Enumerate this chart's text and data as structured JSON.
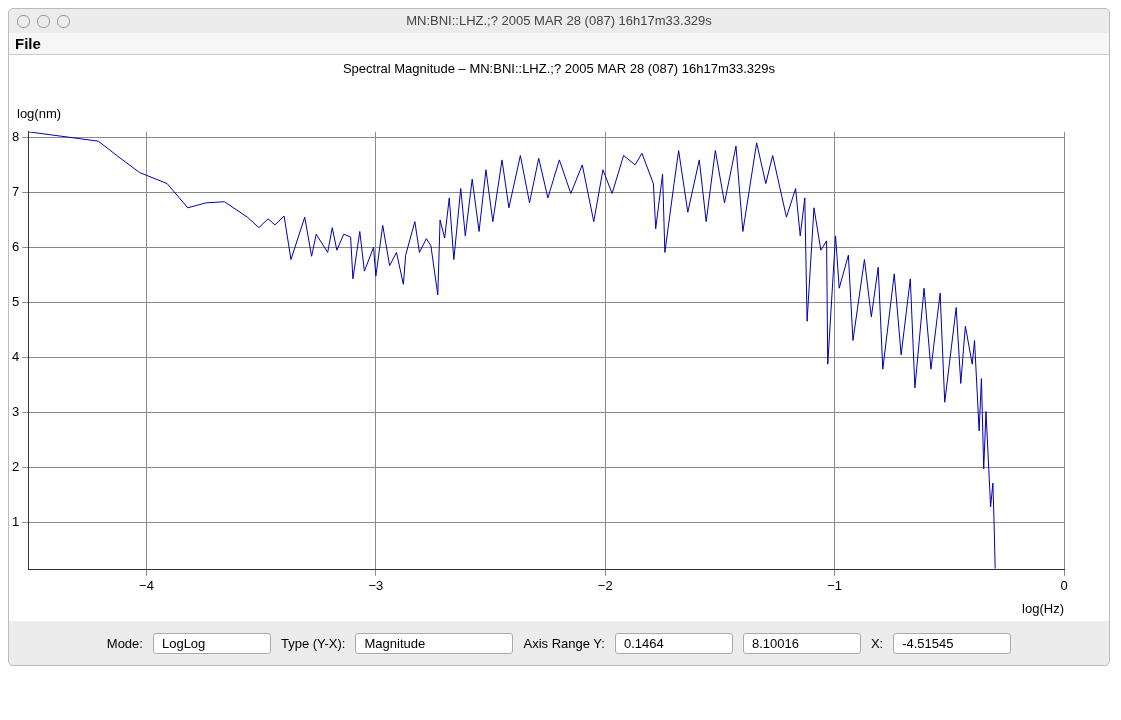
{
  "chart_data": {
    "type": "line",
    "title": "Spectral Magnitude  –  MN:BNI::LHZ.;? 2005 MAR 28 (087)  16h17m33.329s",
    "xlabel": "log(Hz)",
    "ylabel": "log(nm)",
    "annotations": [
      "MN:BNI::LHZ.;? 2005 MAR 28 (087)  16h17m33.329s",
      "File",
      "Mode:",
      "LogLog",
      "Type (Y-X):",
      "Magnitude",
      "Axis Range Y:",
      "0.1464",
      "8.10016",
      "X:",
      "-4.51545"
    ],
    "x": [
      -4.515,
      -4.21,
      -4.12,
      -4.03,
      -3.91,
      -3.82,
      -3.74,
      -3.66,
      -3.56,
      -3.51,
      -3.47,
      -3.44,
      -3.4,
      -3.37,
      -3.31,
      -3.28,
      -3.26,
      -3.21,
      -3.19,
      -3.17,
      -3.14,
      -3.11,
      -3.1,
      -3.07,
      -3.05,
      -3.01,
      -3.0,
      -2.97,
      -2.94,
      -2.91,
      -2.88,
      -2.87,
      -2.83,
      -2.81,
      -2.78,
      -2.76,
      -2.73,
      -2.72,
      -2.7,
      -2.68,
      -2.66,
      -2.63,
      -2.61,
      -2.58,
      -2.55,
      -2.52,
      -2.49,
      -2.45,
      -2.42,
      -2.37,
      -2.33,
      -2.29,
      -2.25,
      -2.2,
      -2.15,
      -2.1,
      -2.05,
      -2.01,
      -1.97,
      -1.92,
      -1.87,
      -1.84,
      -1.79,
      -1.78,
      -1.75,
      -1.74,
      -1.7,
      -1.68,
      -1.64,
      -1.59,
      -1.56,
      -1.52,
      -1.48,
      -1.43,
      -1.4,
      -1.34,
      -1.3,
      -1.27,
      -1.21,
      -1.17,
      -1.15,
      -1.13,
      -1.12,
      -1.09,
      -1.06,
      -1.035,
      -1.03,
      -0.996,
      -0.98,
      -0.94,
      -0.92,
      -0.87,
      -0.84,
      -0.81,
      -0.79,
      -0.74,
      -0.71,
      -0.67,
      -0.65,
      -0.61,
      -0.58,
      -0.54,
      -0.52,
      -0.47,
      -0.45,
      -0.43,
      -0.4,
      -0.39,
      -0.37,
      -0.36,
      -0.35,
      -0.34,
      -0.32,
      -0.31,
      -0.305,
      -0.3
    ],
    "series": [
      {
        "color": "#0000b0",
        "values": [
          8.1,
          7.93,
          7.64,
          7.36,
          7.16,
          6.72,
          6.81,
          6.83,
          6.55,
          6.36,
          6.52,
          6.41,
          6.57,
          5.78,
          6.55,
          5.84,
          6.24,
          5.91,
          6.36,
          5.95,
          6.24,
          6.19,
          5.43,
          6.29,
          5.57,
          6.0,
          5.48,
          6.4,
          5.67,
          5.91,
          5.33,
          5.86,
          6.47,
          5.91,
          6.16,
          6.03,
          5.14,
          6.5,
          6.17,
          6.9,
          5.78,
          7.07,
          6.21,
          7.24,
          6.29,
          7.41,
          6.47,
          7.59,
          6.72,
          7.67,
          6.81,
          7.62,
          6.9,
          7.59,
          6.98,
          7.5,
          6.47,
          7.41,
          6.98,
          7.67,
          7.5,
          7.71,
          7.16,
          6.34,
          7.33,
          5.91,
          7.16,
          7.76,
          6.64,
          7.59,
          6.47,
          7.76,
          6.81,
          7.84,
          6.29,
          7.9,
          7.16,
          7.67,
          6.55,
          7.07,
          6.21,
          6.9,
          4.66,
          6.72,
          5.95,
          6.12,
          3.88,
          6.21,
          5.26,
          5.86,
          4.31,
          5.78,
          4.74,
          5.64,
          3.79,
          5.52,
          4.05,
          5.43,
          3.45,
          5.26,
          3.79,
          5.17,
          3.19,
          4.91,
          3.53,
          4.57,
          3.88,
          4.31,
          2.67,
          3.62,
          1.98,
          3.02,
          1.29,
          1.72,
          1.03,
          0.17
        ]
      }
    ],
    "xlim": [
      -4.51545,
      0
    ],
    "xticks": [
      -4,
      -3,
      -2,
      -1,
      0
    ],
    "ylim": [
      0.1464,
      8.10016
    ],
    "yticks": [
      1,
      2,
      3,
      4,
      5,
      6,
      7,
      8
    ],
    "grid": true,
    "legend": false,
    "marker": "none",
    "line_style": "solid"
  }
}
